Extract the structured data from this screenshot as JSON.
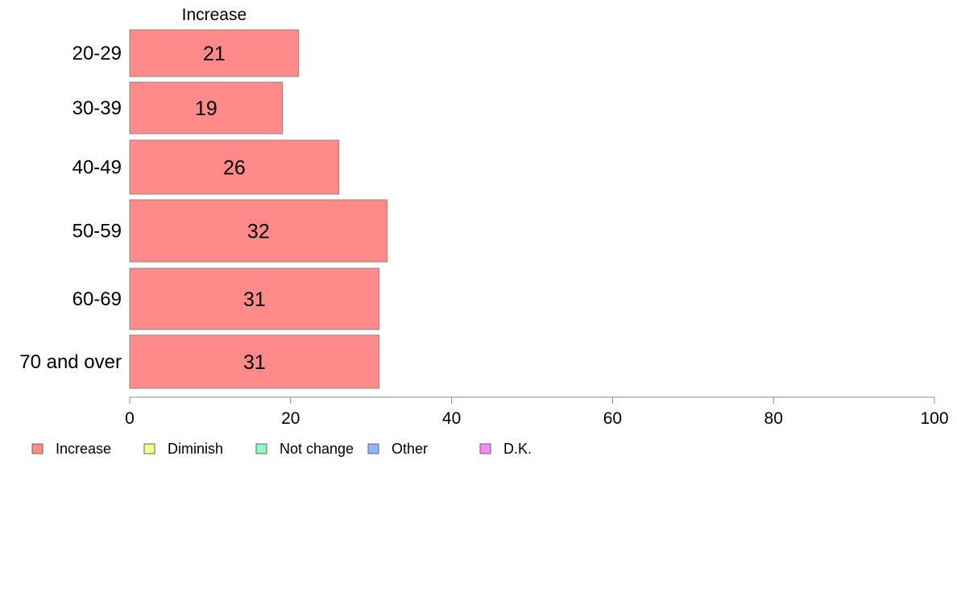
{
  "chart_data": {
    "type": "bar",
    "orientation": "horizontal",
    "stacked": true,
    "categories": [
      "20-29",
      "30-39",
      "40-49",
      "50-59",
      "60-69",
      "70 and over"
    ],
    "series": [
      {
        "name": "Increase",
        "values": [
          21,
          19,
          26,
          32,
          31,
          31
        ],
        "color": "#ff8a8a"
      },
      {
        "name": "Diminish",
        "values": [
          null,
          null,
          null,
          null,
          null,
          null
        ],
        "color": "#f3ff8a"
      },
      {
        "name": "Not change",
        "values": [
          null,
          null,
          null,
          null,
          null,
          null
        ],
        "color": "#8affc4"
      },
      {
        "name": "Other",
        "values": [
          null,
          null,
          null,
          null,
          null,
          null
        ],
        "color": "#8ab4ff"
      },
      {
        "name": "D.K.",
        "values": [
          null,
          null,
          null,
          null,
          null,
          null
        ],
        "color": "#f58aff"
      }
    ],
    "top_series_label": "Increase",
    "xlim": [
      0,
      100
    ],
    "x_ticks": [
      0,
      20,
      40,
      60,
      80,
      100
    ],
    "grid": false,
    "legend_position": "bottom-left"
  }
}
